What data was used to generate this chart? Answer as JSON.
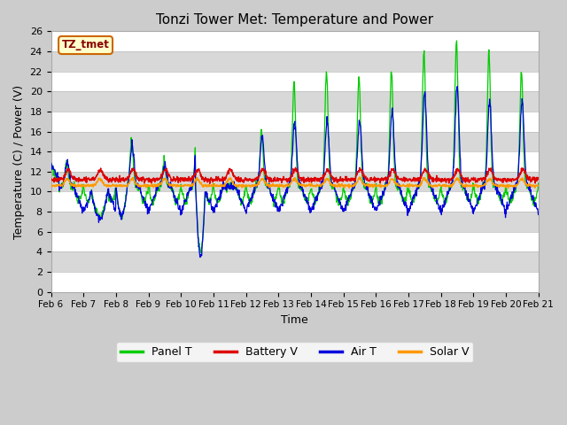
{
  "title": "Tonzi Tower Met: Temperature and Power",
  "xlabel": "Time",
  "ylabel": "Temperature (C) / Power (V)",
  "ylim": [
    0,
    26
  ],
  "yticks": [
    0,
    2,
    4,
    6,
    8,
    10,
    12,
    14,
    16,
    18,
    20,
    22,
    24,
    26
  ],
  "xtick_labels": [
    "Feb 6",
    "Feb 7",
    "Feb 8",
    "Feb 9",
    "Feb 10",
    "Feb 11",
    "Feb 12",
    "Feb 13",
    "Feb 14",
    "Feb 15",
    "Feb 16",
    "Feb 17",
    "Feb 18",
    "Feb 19",
    "Feb 20",
    "Feb 21"
  ],
  "colors": {
    "panel_t": "#00cc00",
    "battery_v": "#dd0000",
    "air_t": "#0000dd",
    "solar_v": "#ff9900"
  },
  "legend_labels": [
    "Panel T",
    "Battery V",
    "Air T",
    "Solar V"
  ],
  "annotation_text": "TZ_tmet",
  "annotation_bbox_facecolor": "#ffffcc",
  "annotation_bbox_edgecolor": "#cc6600",
  "annotation_text_color": "#880000",
  "fig_facecolor": "#cccccc",
  "axes_facecolor": "#e8e8e8",
  "grid_color": "#ffffff",
  "stripe_color": "#d8d8d8",
  "n_days": 15,
  "ppd": 96
}
